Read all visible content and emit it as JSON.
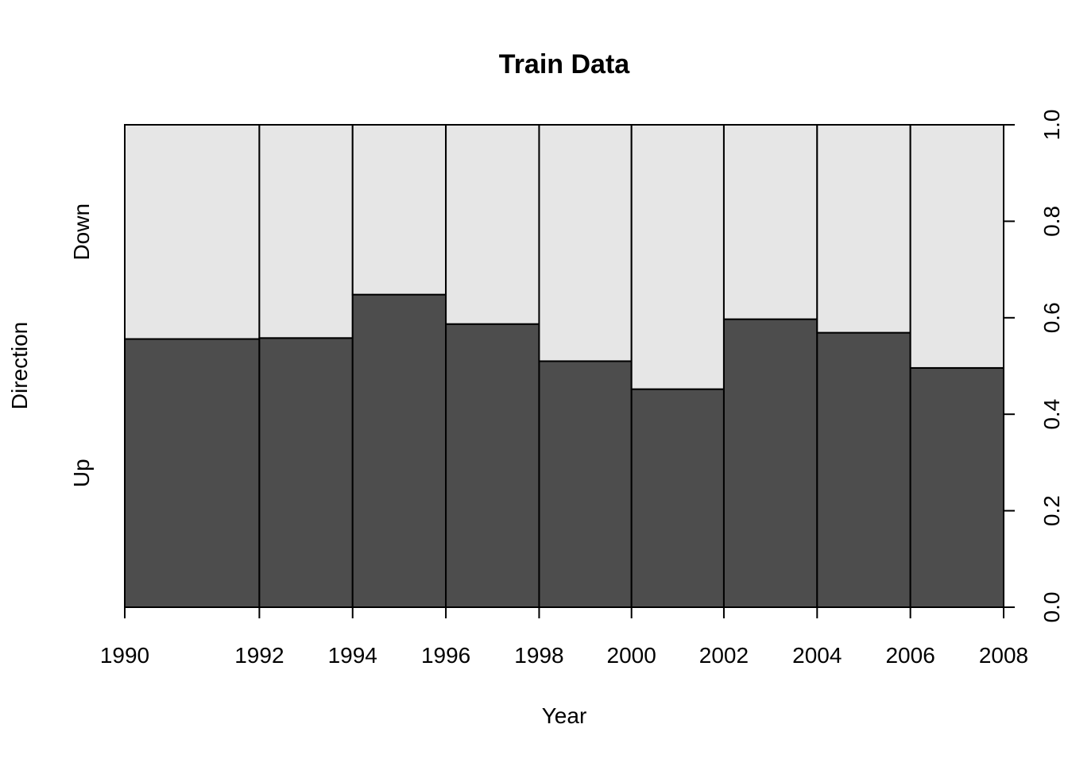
{
  "chart_data": {
    "type": "spineplot",
    "title": "Train Data",
    "xlabel": "Year",
    "ylabel": "Direction",
    "y_levels": [
      "Up",
      "Down"
    ],
    "x_ticks": [
      "1990",
      "1992",
      "1994",
      "1996",
      "1998",
      "2000",
      "2002",
      "2004",
      "2006",
      "2008"
    ],
    "y_ticks": [
      "0.0",
      "0.2",
      "0.4",
      "0.6",
      "0.8",
      "1.0"
    ],
    "y_range": [
      0,
      1
    ],
    "bins": [
      {
        "from": "1990",
        "to": "1992",
        "width": 0.153,
        "up": 0.556
      },
      {
        "from": "1992",
        "to": "1994",
        "width": 0.106,
        "up": 0.558
      },
      {
        "from": "1994",
        "to": "1996",
        "width": 0.106,
        "up": 0.648
      },
      {
        "from": "1996",
        "to": "1998",
        "width": 0.106,
        "up": 0.587
      },
      {
        "from": "1998",
        "to": "2000",
        "width": 0.105,
        "up": 0.51
      },
      {
        "from": "2000",
        "to": "2002",
        "width": 0.105,
        "up": 0.452
      },
      {
        "from": "2002",
        "to": "2004",
        "width": 0.106,
        "up": 0.597
      },
      {
        "from": "2004",
        "to": "2006",
        "width": 0.106,
        "up": 0.569
      },
      {
        "from": "2006",
        "to": "2008",
        "width": 0.106,
        "up": 0.496
      }
    ],
    "colors": {
      "up": "#4d4d4d",
      "down": "#e6e6e6",
      "stroke": "#000000"
    }
  }
}
